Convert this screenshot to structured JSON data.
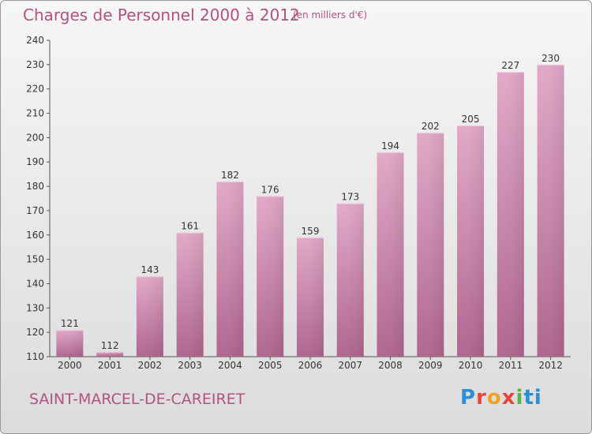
{
  "title": "Charges de Personnel 2000 à 2012",
  "subtitle": "(en milliers d'€)",
  "town": "SAINT-MARCEL-DE-CAREIRET",
  "logo": {
    "p1": "P",
    "p2": "r",
    "p3": "o",
    "p4": "x",
    "p5": "i",
    "p6": "ti"
  },
  "colors": {
    "bar": "#c97fa6",
    "bar_light": "#e3a9c9",
    "bar_dark": "#b06690",
    "text_accent": "#b2527f"
  },
  "chart_data": {
    "type": "bar",
    "title": "Charges de Personnel 2000 à 2012",
    "subtitle": "(en milliers d'€)",
    "categories": [
      "2000",
      "2001",
      "2002",
      "2003",
      "2004",
      "2005",
      "2006",
      "2007",
      "2008",
      "2009",
      "2010",
      "2011",
      "2012"
    ],
    "values": [
      121,
      112,
      143,
      161,
      182,
      176,
      159,
      173,
      194,
      202,
      205,
      227,
      230
    ],
    "ylim": [
      110,
      240
    ],
    "yticks": [
      110,
      120,
      130,
      140,
      150,
      160,
      170,
      180,
      190,
      200,
      210,
      220,
      230,
      240
    ],
    "grid": false,
    "legend": "none"
  }
}
